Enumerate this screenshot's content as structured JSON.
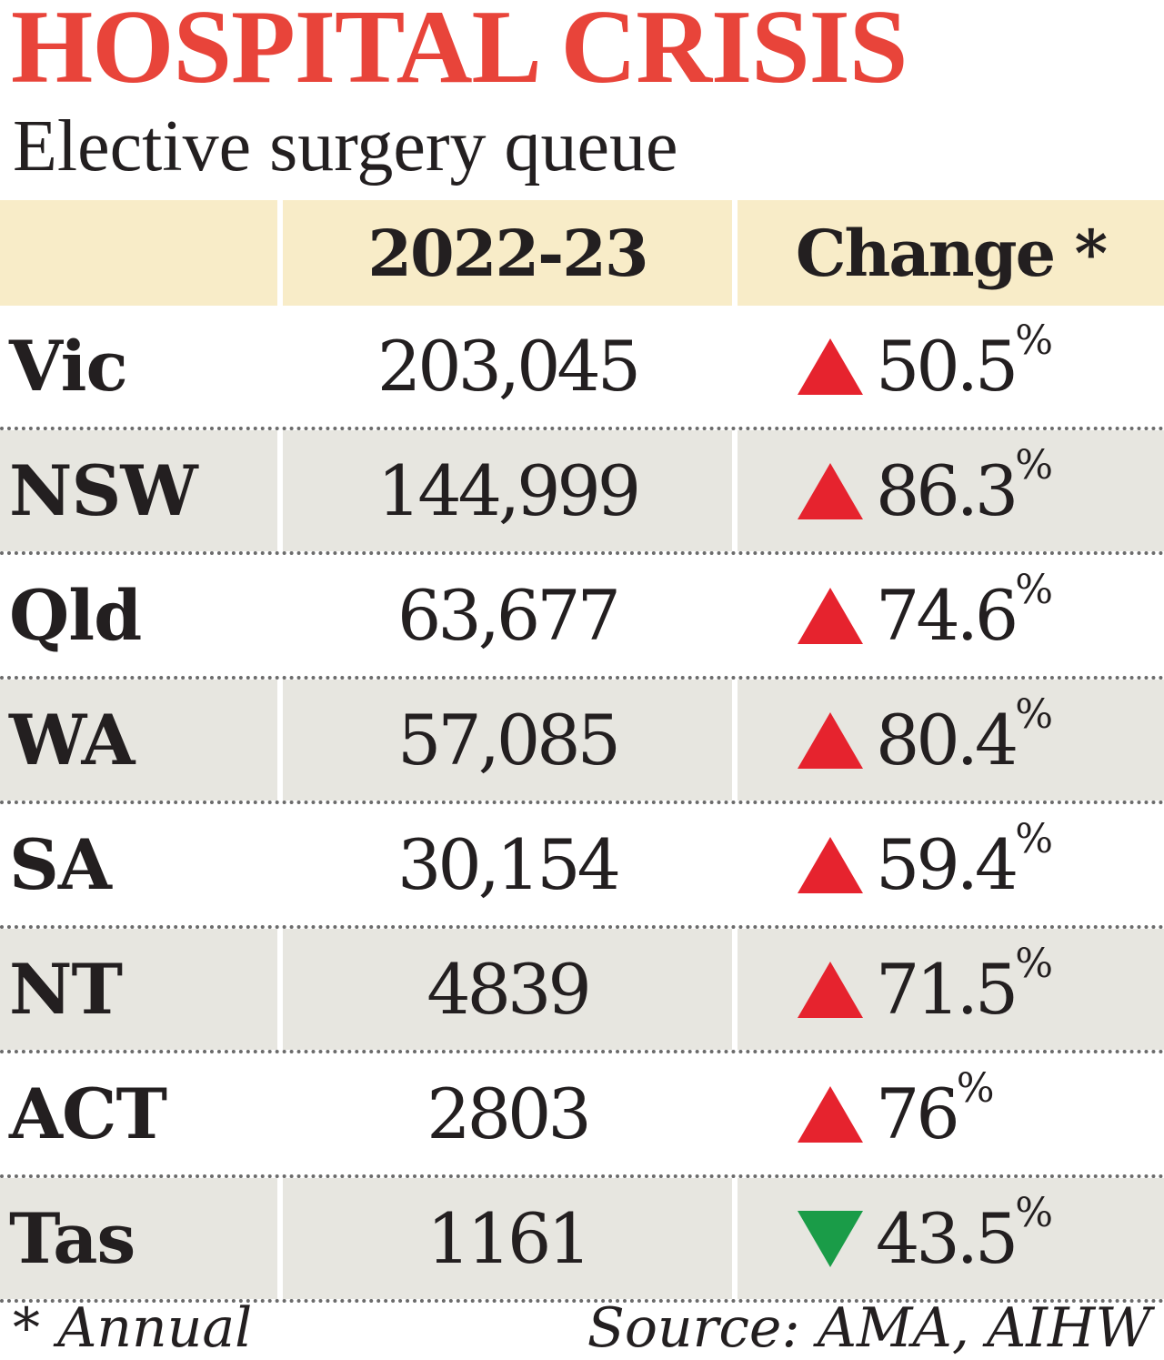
{
  "title": "HOSPITAL CRISIS",
  "subtitle": "Elective surgery queue",
  "colors": {
    "title": "#e8443a",
    "header_bg": "#f8ecc8",
    "row_shade": "#e7e6e0",
    "up_arrow": "#e6232e",
    "down_arrow": "#1a9c48"
  },
  "chart_data": {
    "type": "table",
    "columns": [
      "",
      "2022-23",
      "Change *"
    ],
    "rows": [
      {
        "state": "Vic",
        "value": "203,045",
        "direction": "up",
        "change": "50.5"
      },
      {
        "state": "NSW",
        "value": "144,999",
        "direction": "up",
        "change": "86.3"
      },
      {
        "state": "Qld",
        "value": "63,677",
        "direction": "up",
        "change": "74.6"
      },
      {
        "state": "WA",
        "value": "57,085",
        "direction": "up",
        "change": "80.4"
      },
      {
        "state": "SA",
        "value": "30,154",
        "direction": "up",
        "change": "59.4"
      },
      {
        "state": "NT",
        "value": "4839",
        "direction": "up",
        "change": "71.5"
      },
      {
        "state": "ACT",
        "value": "2803",
        "direction": "up",
        "change": "76"
      },
      {
        "state": "Tas",
        "value": "1161",
        "direction": "down",
        "change": "43.5"
      }
    ],
    "percent_sign": "%"
  },
  "footer": {
    "note": "* Annual",
    "source": "Source: AMA, AIHW"
  }
}
